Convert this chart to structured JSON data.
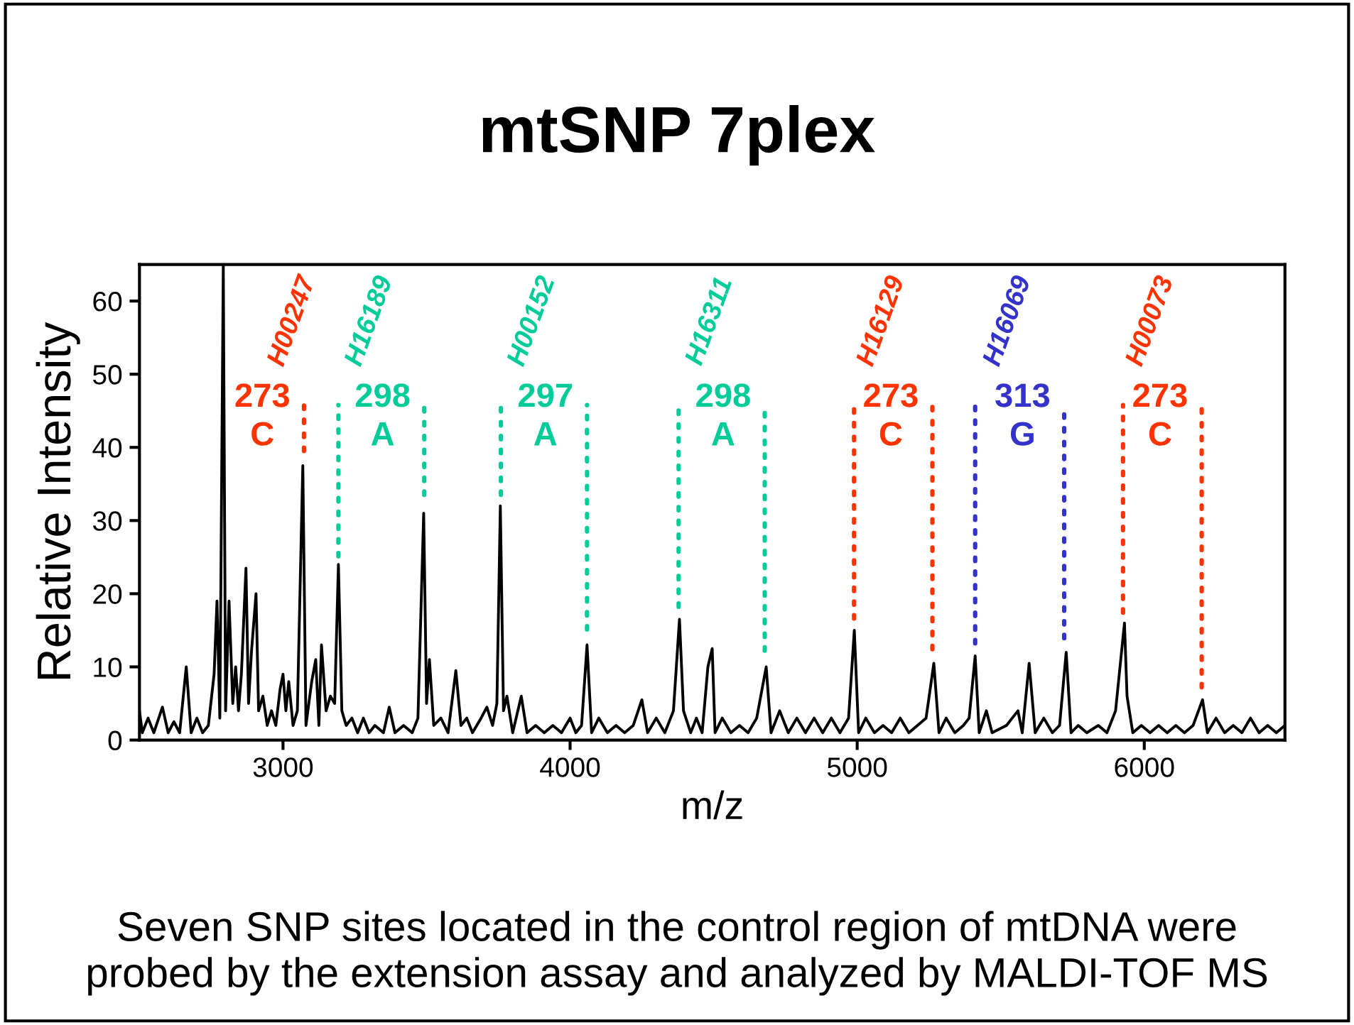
{
  "chart_data": {
    "type": "line",
    "title": "mtSNP 7plex",
    "xlabel": "m/z",
    "ylabel": "Relative Intensity",
    "xlim": [
      2500,
      6490
    ],
    "xticks": [
      3000,
      4000,
      5000,
      6000
    ],
    "ylim": [
      0,
      65
    ],
    "yticks": [
      0,
      10,
      20,
      30,
      40,
      50,
      60
    ],
    "grid": false,
    "legend": false,
    "marker": "none",
    "series": [
      {
        "color": "#000000",
        "line_style": "solid",
        "x": [
          2500,
          2510,
          2530,
          2550,
          2580,
          2600,
          2620,
          2640,
          2663,
          2680,
          2700,
          2720,
          2740,
          2760,
          2770,
          2780,
          2792,
          2800,
          2812,
          2825,
          2835,
          2845,
          2855,
          2871,
          2880,
          2890,
          2906,
          2915,
          2930,
          2945,
          2960,
          2975,
          2990,
          3000,
          3010,
          3020,
          3035,
          3050,
          3069,
          3080,
          3100,
          3114,
          3125,
          3134,
          3150,
          3165,
          3180,
          3193,
          3205,
          3220,
          3240,
          3260,
          3280,
          3300,
          3320,
          3350,
          3370,
          3390,
          3420,
          3450,
          3470,
          3490,
          3500,
          3510,
          3525,
          3550,
          3575,
          3602,
          3620,
          3640,
          3660,
          3690,
          3710,
          3730,
          3745,
          3757,
          3768,
          3780,
          3800,
          3830,
          3850,
          3880,
          3910,
          3940,
          3970,
          4000,
          4020,
          4040,
          4059,
          4075,
          4100,
          4130,
          4160,
          4190,
          4220,
          4250,
          4270,
          4300,
          4330,
          4360,
          4381,
          4395,
          4420,
          4440,
          4460,
          4480,
          4495,
          4505,
          4530,
          4560,
          4590,
          4620,
          4650,
          4683,
          4700,
          4730,
          4760,
          4790,
          4820,
          4850,
          4880,
          4910,
          4940,
          4970,
          4990,
          5005,
          5030,
          5060,
          5090,
          5120,
          5150,
          5180,
          5210,
          5240,
          5267,
          5285,
          5310,
          5340,
          5370,
          5390,
          5411,
          5425,
          5450,
          5470,
          5520,
          5560,
          5575,
          5599,
          5620,
          5650,
          5680,
          5705,
          5728,
          5745,
          5770,
          5800,
          5840,
          5870,
          5900,
          5931,
          5940,
          5960,
          5990,
          6020,
          6050,
          6080,
          6110,
          6140,
          6170,
          6203,
          6220,
          6250,
          6280,
          6310,
          6340,
          6370,
          6400,
          6430,
          6460,
          6490
        ],
        "values": [
          4,
          1,
          3,
          1,
          4.5,
          1,
          2.5,
          1,
          10,
          1,
          3,
          1,
          2,
          9,
          19,
          3,
          65,
          4,
          19,
          5,
          10,
          4,
          9,
          23.5,
          5,
          12,
          20,
          4,
          6,
          2,
          4,
          2,
          7,
          9,
          4,
          8,
          2,
          4,
          37.5,
          2,
          8,
          11,
          2,
          13,
          4,
          6,
          5,
          24,
          4,
          2,
          3,
          1,
          3,
          1,
          2,
          1,
          4.5,
          1,
          2,
          1,
          3,
          31,
          5,
          11,
          2,
          3,
          1,
          9.5,
          2,
          3,
          1,
          3,
          4.5,
          2,
          5,
          32,
          4,
          6,
          1,
          6,
          1,
          2,
          1,
          2,
          1,
          3,
          1,
          2,
          13,
          1,
          3,
          1,
          2,
          1,
          2,
          5.5,
          1,
          3,
          1,
          4,
          16.5,
          4,
          1,
          3,
          1,
          10,
          12.5,
          1,
          3,
          1,
          2,
          1,
          3,
          10,
          1,
          4,
          1,
          3,
          1,
          3,
          1,
          3,
          1,
          3,
          15,
          1,
          3,
          1,
          2,
          1,
          3,
          1,
          2,
          3,
          10.5,
          1,
          3,
          1,
          2,
          3,
          11.5,
          1,
          4,
          1,
          2,
          4,
          1,
          10.5,
          1,
          3,
          1,
          2,
          12,
          1,
          2,
          1,
          2,
          1,
          4,
          16,
          6,
          1,
          2,
          1,
          2,
          1,
          2,
          1,
          2,
          5.5,
          1,
          3,
          1,
          2,
          1,
          3,
          1,
          2,
          1,
          2
        ]
      },
      {
        "name": "H00247",
        "color": "#ff3300",
        "line_style": "dotted",
        "x": [
          3073,
          3073
        ],
        "values": [
          45.8,
          39.5
        ]
      },
      {
        "name": "H16189",
        "color": "#00cc99",
        "line_style": "dotted",
        "x": [
          3193,
          3193,
          null,
          3492,
          3492
        ],
        "values": [
          45.8,
          25.1,
          null,
          45.8,
          33.5
        ]
      },
      {
        "name": "H00152",
        "color": "#00cc99",
        "line_style": "dotted",
        "x": [
          3759,
          3759,
          null,
          4059,
          4059
        ],
        "values": [
          45.8,
          33.5,
          null,
          45.8,
          15.1
        ]
      },
      {
        "name": "H16311",
        "color": "#00cc99",
        "line_style": "dotted",
        "x": [
          4378,
          4378,
          null,
          4678,
          4678
        ],
        "values": [
          45.8,
          18.2,
          null,
          45.8,
          12.2
        ]
      },
      {
        "name": "H16129",
        "color": "#ff3300",
        "line_style": "dotted",
        "x": [
          4989,
          4989,
          null,
          5262,
          5262
        ],
        "values": [
          45.8,
          16.6,
          null,
          45.8,
          12.4
        ]
      },
      {
        "name": "H16069",
        "color": "#3333cc",
        "line_style": "dotted",
        "x": [
          5411,
          5411,
          null,
          5721,
          5721
        ],
        "values": [
          45.8,
          13.2,
          null,
          45.8,
          13.9
        ]
      },
      {
        "name": "H00073",
        "color": "#ff3300",
        "line_style": "dotted",
        "x": [
          5926,
          5926,
          null,
          6200,
          6200
        ],
        "values": [
          45.8,
          17.4,
          null,
          45.8,
          7.2
        ]
      }
    ],
    "annotations": [
      "273\nC",
      "298\nA",
      "297\nA",
      "298\nA",
      "273\nC",
      "313\nG",
      "273\nC",
      "Seven SNP sites located in the control region of mtDNA were\nprobed by the extension assay and analyzed by MALDI-TOF MS"
    ]
  }
}
